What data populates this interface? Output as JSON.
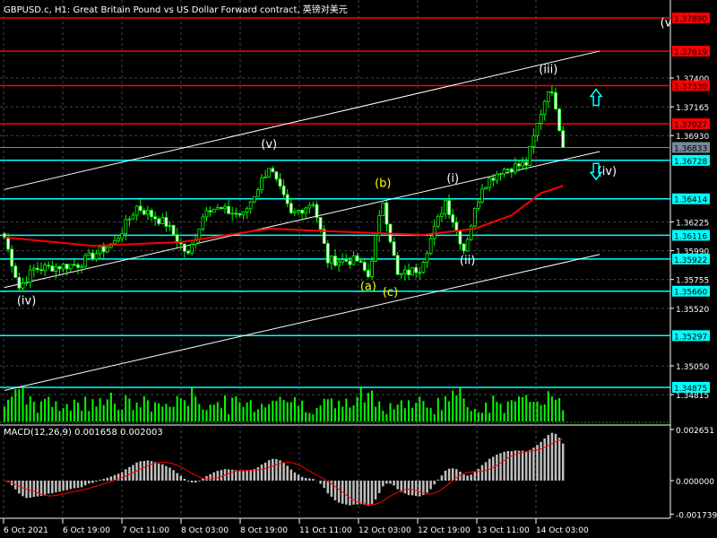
{
  "title": "GBPUSD.c, H1:  Great Britain Pound vs US Dollar Forward contract, 英镑对美元",
  "macd_label": "MACD(12,26,9) 0.001658 0.002003",
  "colors": {
    "background": "#000000",
    "candle": "#00ff00",
    "resistance": "#ff0000",
    "support": "#00ffff",
    "ma": "#ff0000",
    "macd_hist": "#c0c0c0",
    "macd_signal": "#ff0000",
    "current_price": "#778899",
    "wave_white": "#ffffff",
    "wave_yellow": "#ffff00"
  },
  "chart_data": [
    {
      "type": "candlestick",
      "symbol": "GBPUSD.c",
      "timeframe": "H1",
      "ylim": [
        1.3462,
        1.3808
      ],
      "y_ticks": [
        "1.37400",
        "1.37165",
        "1.36930",
        "1.36225",
        "1.35990",
        "1.35755",
        "1.35520",
        "1.35050",
        "1.34815"
      ],
      "x_ticks": [
        "6 Oct 2021",
        "6 Oct 19:00",
        "7 Oct 11:00",
        "8 Oct 03:00",
        "8 Oct 19:00",
        "11 Oct 11:00",
        "12 Oct 03:00",
        "12 Oct 19:00",
        "13 Oct 11:00",
        "14 Oct 03:00"
      ],
      "current_price": "1.36833",
      "resistance_levels": [
        "1.37890",
        "1.37619",
        "1.37338",
        "1.37027"
      ],
      "support_levels": [
        "1.36728",
        "1.36414",
        "1.36116",
        "1.35922",
        "1.35660",
        "1.35297",
        "1.34875"
      ],
      "price_path": [
        [
          0,
          1.361
        ],
        [
          4,
          1.3569
        ],
        [
          8,
          1.3584
        ],
        [
          20,
          1.3588
        ],
        [
          30,
          1.3606
        ],
        [
          36,
          1.3635
        ],
        [
          44,
          1.3621
        ],
        [
          50,
          1.3595
        ],
        [
          55,
          1.3635
        ],
        [
          65,
          1.3628
        ],
        [
          72,
          1.3668
        ],
        [
          78,
          1.3628
        ],
        [
          84,
          1.3639
        ],
        [
          88,
          1.3591
        ],
        [
          96,
          1.3591
        ],
        [
          99,
          1.3578
        ],
        [
          103,
          1.364
        ],
        [
          107,
          1.3578
        ],
        [
          113,
          1.3585
        ],
        [
          120,
          1.364
        ],
        [
          125,
          1.36
        ],
        [
          130,
          1.3652
        ],
        [
          135,
          1.3665
        ],
        [
          142,
          1.367
        ],
        [
          145,
          1.3702
        ],
        [
          148,
          1.3732
        ],
        [
          150,
          1.3718
        ],
        [
          152,
          1.3683
        ]
      ],
      "moving_average": [
        [
          0,
          1.361
        ],
        [
          24,
          1.3603
        ],
        [
          48,
          1.3606
        ],
        [
          72,
          1.3617
        ],
        [
          96,
          1.3614
        ],
        [
          114,
          1.3612
        ],
        [
          128,
          1.3617
        ],
        [
          138,
          1.3628
        ],
        [
          146,
          1.3646
        ],
        [
          152,
          1.3652
        ]
      ],
      "channel_lines": [
        [
          [
            0,
            1.3649
          ],
          [
            162,
            1.3762
          ]
        ],
        [
          [
            0,
            1.3569
          ],
          [
            162,
            1.368
          ]
        ],
        [
          [
            0,
            1.3485
          ],
          [
            162,
            1.3596
          ]
        ]
      ],
      "wave_labels": [
        {
          "text": "(iv)",
          "bar": 6,
          "price": 1.3555,
          "color": "white"
        },
        {
          "text": "(v)",
          "bar": 72,
          "price": 1.3683,
          "color": "white"
        },
        {
          "text": "(a)",
          "bar": 99,
          "price": 1.3567,
          "color": "yellow"
        },
        {
          "text": "(b)",
          "bar": 103,
          "price": 1.3651,
          "color": "yellow"
        },
        {
          "text": "(c)",
          "bar": 105,
          "price": 1.3562,
          "color": "yellow"
        },
        {
          "text": "(i)",
          "bar": 122,
          "price": 1.3655,
          "color": "white"
        },
        {
          "text": "(ii)",
          "bar": 126,
          "price": 1.3588,
          "color": "white"
        },
        {
          "text": "(iii)",
          "bar": 148,
          "price": 1.3744,
          "color": "white"
        },
        {
          "text": "(iv)",
          "bar": 164,
          "price": 1.3661,
          "color": "white"
        },
        {
          "text": "(v",
          "bar": 180,
          "price": 1.3782,
          "color": "white"
        }
      ],
      "arrows": [
        {
          "direction": "up",
          "bar": 161,
          "price": 1.3725
        },
        {
          "direction": "down",
          "bar": 161,
          "price": 1.3663
        }
      ]
    },
    {
      "type": "macd",
      "params": "12,26,9",
      "value": "0.001658",
      "signal": "0.002003",
      "y_ticks": [
        "0.002651",
        "0.000000",
        "-0.001739"
      ]
    }
  ]
}
